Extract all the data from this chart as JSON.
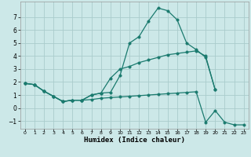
{
  "xlabel": "Humidex (Indice chaleur)",
  "background_color": "#cce8e8",
  "grid_color": "#aacccc",
  "line_color": "#1a7a6e",
  "xlim": [
    -0.5,
    23.5
  ],
  "ylim": [
    -1.6,
    8.2
  ],
  "yticks": [
    -1,
    0,
    1,
    2,
    3,
    4,
    5,
    6,
    7
  ],
  "xticks": [
    0,
    1,
    2,
    3,
    4,
    5,
    6,
    7,
    8,
    9,
    10,
    11,
    12,
    13,
    14,
    15,
    16,
    17,
    18,
    19,
    20,
    21,
    22,
    23
  ],
  "line1_x": [
    0,
    1,
    2,
    3,
    4,
    5,
    6,
    7,
    8,
    9,
    10,
    11,
    12,
    13,
    14,
    15,
    16,
    17,
    18,
    19,
    20
  ],
  "line1_y": [
    1.9,
    1.8,
    1.3,
    0.9,
    0.5,
    0.6,
    0.6,
    1.0,
    1.15,
    1.2,
    2.5,
    5.0,
    5.5,
    6.7,
    7.7,
    7.5,
    6.8,
    5.0,
    4.5,
    3.9,
    1.4
  ],
  "line2_x": [
    0,
    1,
    2,
    3,
    4,
    5,
    6,
    7,
    8,
    9,
    10,
    11,
    12,
    13,
    14,
    15,
    16,
    17,
    18,
    19,
    20
  ],
  "line2_y": [
    1.9,
    1.8,
    1.3,
    0.9,
    0.5,
    0.6,
    0.6,
    1.0,
    1.15,
    2.3,
    3.0,
    3.2,
    3.5,
    3.7,
    3.9,
    4.1,
    4.2,
    4.3,
    4.4,
    4.0,
    1.4
  ],
  "line3_x": [
    0,
    1,
    2,
    3,
    4,
    5,
    6,
    7,
    8,
    9,
    10,
    11,
    12,
    13,
    14,
    15,
    16,
    17,
    18,
    19,
    20,
    21,
    22,
    23
  ],
  "line3_y": [
    1.9,
    1.8,
    1.3,
    0.9,
    0.5,
    0.6,
    0.6,
    0.65,
    0.75,
    0.8,
    0.85,
    0.9,
    0.95,
    1.0,
    1.05,
    1.1,
    1.15,
    1.2,
    1.25,
    -1.1,
    -0.2,
    -1.1,
    -1.3,
    -1.3
  ]
}
